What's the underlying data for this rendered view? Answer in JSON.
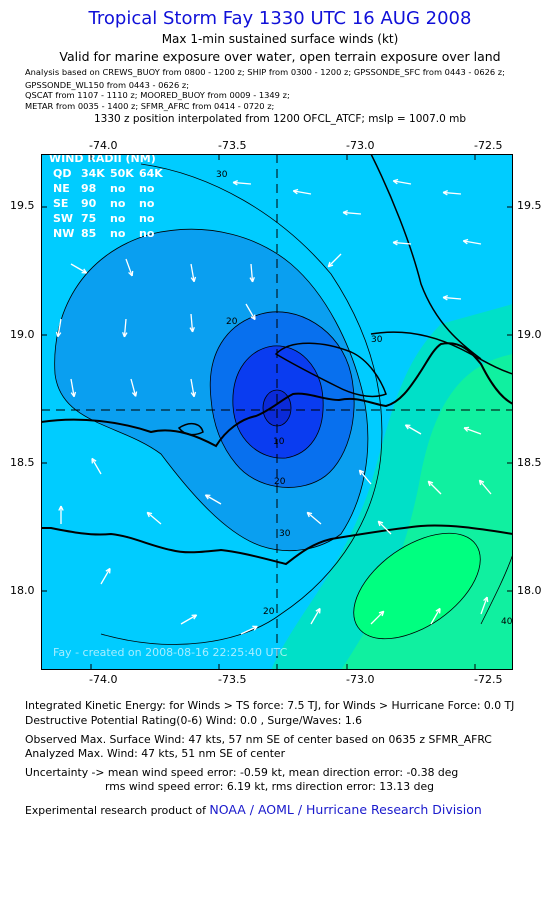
{
  "header": {
    "title": "Tropical Storm Fay 1330 UTC 16 AUG 2008",
    "subtitle": "Max 1-min sustained surface winds (kt)",
    "valid_line": "Valid for marine exposure over water, open terrain exposure over land",
    "sources": [
      "Analysis based on  CREWS_BUOY from 0800 - 1200 z;  SHIP from 0300 - 1200 z;  GPSSONDE_SFC from 0443 - 0626 z;",
      "GPSSONDE_WL150 from 0443 - 0626 z;",
      "QSCAT from 1107 - 1110 z;  MOORED_BUOY from 0009 - 1349 z;",
      "METAR from 0035 - 1400 z;  SFMR_AFRC from 0414 - 0720 z;"
    ],
    "interpolation": "1330 z position interpolated from 1200 OFCL_ATCF; mslp = 1007.0 mb"
  },
  "map": {
    "lon_ticks": [
      "-74.0",
      "-73.5",
      "-73.0",
      "-72.5"
    ],
    "lat_ticks": [
      "19.5",
      "19.0",
      "18.5",
      "18.0"
    ],
    "lon_range": [
      -74.28,
      -72.45
    ],
    "lat_range": [
      17.7,
      19.7
    ],
    "center": {
      "lon": -73.3,
      "lat": 18.7
    },
    "contour_labels": [
      "30",
      "20",
      "10",
      "20",
      "30",
      "20",
      "30",
      "40"
    ],
    "wind_radii": {
      "title": "WIND RADII (NM)",
      "header": [
        "QD",
        "34K",
        "50K",
        "64K"
      ],
      "rows": [
        [
          "NE",
          "98",
          "no",
          "no"
        ],
        [
          "SE",
          "90",
          "no",
          "no"
        ],
        [
          "SW",
          "75",
          "no",
          "no"
        ],
        [
          "NW",
          "85",
          "no",
          "no"
        ]
      ]
    },
    "credit": "Fay  -  created on 2008-08-16  22:25:40 UTC",
    "colors": {
      "ocean": "#00ccff",
      "band_20_30": "#0a9ff0",
      "band_10_20": "#0870ee",
      "band_0_10": "#0a3cf0",
      "core": "#0a2ad8",
      "teal": "#00e0c8",
      "green": "#10f0a0",
      "bright_green": "#00ff80"
    }
  },
  "footer": {
    "ike": "Integrated Kinetic Energy:  for Winds > TS force: 7.5 TJ,  for Winds > Hurricane Force: 0.0 TJ",
    "dpr": "Destructive Potential Rating(0-6)   Wind: 0.0 , Surge/Waves: 1.6",
    "observed": "Observed Max. Surface Wind: 47 kts, 57 nm SE of center based on 0635 z SFMR_AFRC",
    "analyzed": "Analyzed Max. Wind: 47 kts, 51 nm SE of center",
    "uncertainty_1": "Uncertainty -> mean wind speed error:  -0.59 kt,   mean direction error:  -0.38 deg",
    "uncertainty_2": "rms wind speed error: 6.19 kt,   rms direction error: 13.13 deg",
    "credit_prefix": "Experimental research product of",
    "credit_org": "NOAA / AOML / Hurricane Research Division"
  }
}
